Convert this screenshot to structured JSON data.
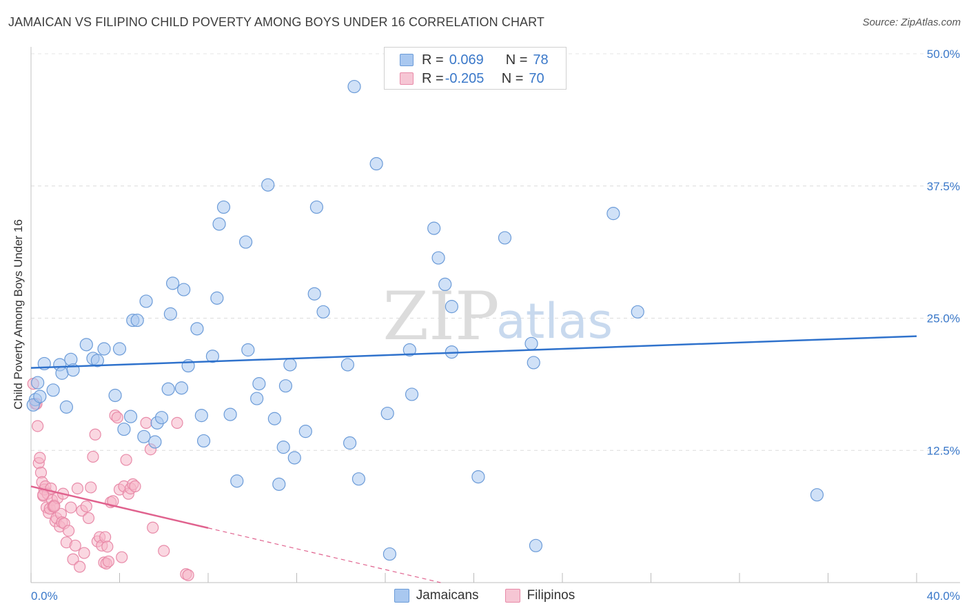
{
  "title": "JAMAICAN VS FILIPINO CHILD POVERTY AMONG BOYS UNDER 16 CORRELATION CHART",
  "source": "Source: ZipAtlas.com",
  "watermark": {
    "zip": "ZIP",
    "atlas": "atlas"
  },
  "legend": {
    "r_label": "R =",
    "n_label": "N =",
    "rows": [
      {
        "r": "0.069",
        "n": "78"
      },
      {
        "r": "-0.205",
        "n": "70"
      }
    ]
  },
  "colors": {
    "blue_fill": "#a9c8f0",
    "blue_stroke": "#6b9bd8",
    "blue_line": "#2f72cc",
    "pink_fill": "#f6b6c8",
    "pink_stroke": "#e88aa8",
    "pink_line": "#e0628e",
    "tick_text": "#3a78c9"
  },
  "chart_data": {
    "type": "scatter",
    "title": "JAMAICAN VS FILIPINO CHILD POVERTY AMONG BOYS UNDER 16 CORRELATION CHART",
    "xlabel": "",
    "ylabel": "Child Poverty Among Boys Under 16",
    "xlim": [
      0,
      40
    ],
    "ylim": [
      0,
      50
    ],
    "x_tick_labels": [
      "0.0%",
      "40.0%"
    ],
    "y_ticks": [
      12.5,
      25.0,
      37.5,
      50.0
    ],
    "y_tick_labels": [
      "12.5%",
      "25.0%",
      "37.5%",
      "50.0%"
    ],
    "grid": true,
    "legend_position": "bottom-center",
    "series": [
      {
        "name": "Jamaicans",
        "color": "#a9c8f0",
        "R": 0.069,
        "N": 78,
        "trend": {
          "x": [
            0,
            40
          ],
          "y": [
            20.3,
            23.3
          ],
          "dash_from": null
        },
        "points": [
          [
            0.2,
            17.3
          ],
          [
            0.3,
            18.9
          ],
          [
            0.6,
            20.7
          ],
          [
            1.0,
            18.2
          ],
          [
            1.3,
            20.6
          ],
          [
            1.4,
            19.8
          ],
          [
            1.6,
            16.6
          ],
          [
            1.8,
            21.1
          ],
          [
            1.9,
            20.1
          ],
          [
            2.5,
            22.5
          ],
          [
            2.8,
            21.2
          ],
          [
            3.0,
            21.0
          ],
          [
            3.3,
            22.1
          ],
          [
            3.8,
            17.7
          ],
          [
            4.0,
            22.1
          ],
          [
            4.2,
            14.5
          ],
          [
            4.5,
            15.7
          ],
          [
            4.6,
            24.8
          ],
          [
            4.8,
            24.8
          ],
          [
            5.1,
            13.8
          ],
          [
            5.2,
            26.6
          ],
          [
            5.6,
            13.3
          ],
          [
            5.7,
            15.1
          ],
          [
            5.9,
            15.6
          ],
          [
            6.2,
            18.3
          ],
          [
            6.3,
            25.4
          ],
          [
            6.4,
            28.3
          ],
          [
            6.8,
            18.4
          ],
          [
            6.9,
            27.7
          ],
          [
            7.1,
            20.5
          ],
          [
            7.5,
            24.0
          ],
          [
            7.7,
            15.8
          ],
          [
            7.8,
            13.4
          ],
          [
            8.2,
            21.4
          ],
          [
            8.4,
            26.9
          ],
          [
            8.5,
            33.9
          ],
          [
            8.7,
            35.5
          ],
          [
            9.0,
            15.9
          ],
          [
            9.3,
            9.6
          ],
          [
            9.7,
            32.2
          ],
          [
            9.8,
            22.0
          ],
          [
            10.2,
            17.4
          ],
          [
            10.3,
            18.8
          ],
          [
            10.7,
            37.6
          ],
          [
            11.0,
            15.5
          ],
          [
            11.2,
            9.3
          ],
          [
            11.4,
            12.8
          ],
          [
            11.5,
            18.6
          ],
          [
            11.7,
            20.6
          ],
          [
            11.9,
            11.8
          ],
          [
            12.4,
            14.3
          ],
          [
            12.8,
            27.3
          ],
          [
            12.9,
            35.5
          ],
          [
            13.2,
            25.6
          ],
          [
            14.3,
            20.6
          ],
          [
            14.4,
            13.2
          ],
          [
            14.6,
            46.9
          ],
          [
            14.8,
            9.8
          ],
          [
            15.6,
            39.6
          ],
          [
            16.1,
            16.0
          ],
          [
            16.2,
            2.7
          ],
          [
            17.1,
            22.0
          ],
          [
            17.2,
            17.8
          ],
          [
            18.2,
            33.5
          ],
          [
            18.4,
            30.7
          ],
          [
            18.7,
            28.2
          ],
          [
            19.0,
            21.8
          ],
          [
            19.0,
            26.1
          ],
          [
            20.2,
            10.0
          ],
          [
            21.4,
            32.6
          ],
          [
            22.6,
            22.6
          ],
          [
            22.7,
            20.8
          ],
          [
            22.8,
            3.5
          ],
          [
            26.3,
            34.9
          ],
          [
            27.4,
            25.6
          ],
          [
            35.5,
            8.3
          ],
          [
            0.1,
            16.8
          ],
          [
            0.4,
            17.6
          ]
        ]
      },
      {
        "name": "Filipinos",
        "color": "#f6b6c8",
        "R": -0.205,
        "N": 70,
        "trend": {
          "x": [
            0,
            18.5
          ],
          "y": [
            9.1,
            0.0
          ],
          "dash_from": 8.0
        },
        "points": [
          [
            0.1,
            18.8
          ],
          [
            0.2,
            16.9
          ],
          [
            0.3,
            14.8
          ],
          [
            0.35,
            11.3
          ],
          [
            0.4,
            11.8
          ],
          [
            0.45,
            10.4
          ],
          [
            0.5,
            9.5
          ],
          [
            0.55,
            8.2
          ],
          [
            0.6,
            8.8
          ],
          [
            0.65,
            9.1
          ],
          [
            0.7,
            7.1
          ],
          [
            0.75,
            8.4
          ],
          [
            0.8,
            6.6
          ],
          [
            0.85,
            7.0
          ],
          [
            0.9,
            8.9
          ],
          [
            0.95,
            7.8
          ],
          [
            1.0,
            7.2
          ],
          [
            1.05,
            7.3
          ],
          [
            1.1,
            5.8
          ],
          [
            1.15,
            6.1
          ],
          [
            1.2,
            8.0
          ],
          [
            1.3,
            5.3
          ],
          [
            1.35,
            6.5
          ],
          [
            1.4,
            5.7
          ],
          [
            1.45,
            8.4
          ],
          [
            1.5,
            5.6
          ],
          [
            1.6,
            3.8
          ],
          [
            1.7,
            4.9
          ],
          [
            1.8,
            7.1
          ],
          [
            1.9,
            2.2
          ],
          [
            2.0,
            3.5
          ],
          [
            2.1,
            8.9
          ],
          [
            2.2,
            1.5
          ],
          [
            2.3,
            6.8
          ],
          [
            2.4,
            2.8
          ],
          [
            2.5,
            7.2
          ],
          [
            2.6,
            6.1
          ],
          [
            2.7,
            9.0
          ],
          [
            2.8,
            11.9
          ],
          [
            2.9,
            14.0
          ],
          [
            3.0,
            3.9
          ],
          [
            3.1,
            4.3
          ],
          [
            3.2,
            3.5
          ],
          [
            3.3,
            1.9
          ],
          [
            3.35,
            4.3
          ],
          [
            3.4,
            1.8
          ],
          [
            3.45,
            3.4
          ],
          [
            3.5,
            2.0
          ],
          [
            3.6,
            7.6
          ],
          [
            3.7,
            7.7
          ],
          [
            3.8,
            15.8
          ],
          [
            3.9,
            15.6
          ],
          [
            4.0,
            8.8
          ],
          [
            4.1,
            2.4
          ],
          [
            4.2,
            9.1
          ],
          [
            4.3,
            11.6
          ],
          [
            4.4,
            8.4
          ],
          [
            4.5,
            8.9
          ],
          [
            4.6,
            9.3
          ],
          [
            4.7,
            9.1
          ],
          [
            5.2,
            15.1
          ],
          [
            5.4,
            12.6
          ],
          [
            5.5,
            5.2
          ],
          [
            6.0,
            3.0
          ],
          [
            6.6,
            15.1
          ],
          [
            7.0,
            0.8
          ],
          [
            7.1,
            0.7
          ],
          [
            0.25,
            16.9
          ],
          [
            0.55,
            8.3
          ],
          [
            1.05,
            7.2
          ]
        ]
      }
    ]
  }
}
